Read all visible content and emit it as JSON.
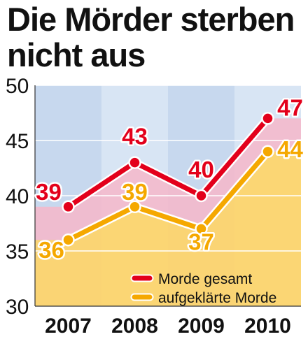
{
  "title": {
    "line1": "Die Mörder sterben",
    "line2": "nicht aus"
  },
  "colors": {
    "red": "#e3001b",
    "orange": "#f5a800",
    "plot_bg": "#c7d8ee",
    "plot_bg_alt": "#d8e5f4",
    "red_area": "#f6b7c9",
    "orange_area": "#ffd466",
    "grid": "#ffffff"
  },
  "chart_data": {
    "type": "line",
    "title": "Die Mörder sterben nicht aus",
    "categories": [
      "2007",
      "2008",
      "2009",
      "2010"
    ],
    "ylim": [
      30,
      50
    ],
    "yticks": [
      30,
      35,
      40,
      45,
      50
    ],
    "grid": true,
    "legend_position": "bottom-right",
    "series": [
      {
        "name": "Morde gesamt",
        "values": [
          39,
          43,
          40,
          47
        ],
        "color": "#e3001b"
      },
      {
        "name": "aufgeklärte Morde",
        "values": [
          36,
          39,
          37,
          44
        ],
        "color": "#f5a800"
      }
    ]
  }
}
